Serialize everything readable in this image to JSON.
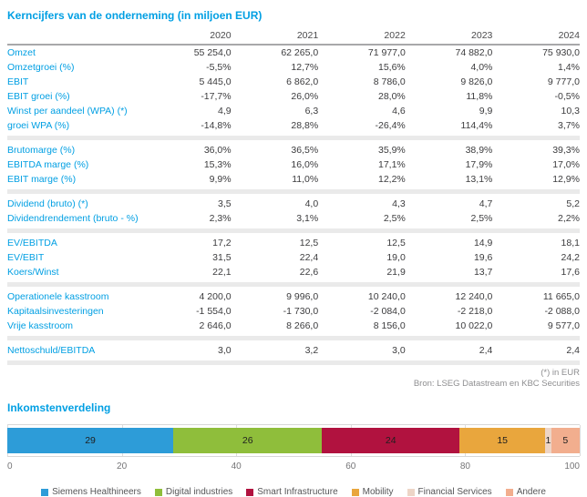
{
  "table": {
    "title": "Kerncijfers van de onderneming (in miljoen EUR)",
    "columns": [
      "2020",
      "2021",
      "2022",
      "2023",
      "2024"
    ],
    "groups": [
      {
        "rows": [
          {
            "label": "Omzet",
            "values": [
              "55 254,0",
              "62 265,0",
              "71 977,0",
              "74 882,0",
              "75 930,0"
            ]
          },
          {
            "label": "Omzetgroei (%)",
            "values": [
              "-5,5%",
              "12,7%",
              "15,6%",
              "4,0%",
              "1,4%"
            ]
          },
          {
            "label": "EBIT",
            "values": [
              "5 445,0",
              "6 862,0",
              "8 786,0",
              "9 826,0",
              "9 777,0"
            ]
          },
          {
            "label": "EBIT groei (%)",
            "values": [
              "-17,7%",
              "26,0%",
              "28,0%",
              "11,8%",
              "-0,5%"
            ]
          },
          {
            "label": "Winst per aandeel (WPA) (*)",
            "values": [
              "4,9",
              "6,3",
              "4,6",
              "9,9",
              "10,3"
            ]
          },
          {
            "label": "groei WPA (%)",
            "values": [
              "-14,8%",
              "28,8%",
              "-26,4%",
              "114,4%",
              "3,7%"
            ]
          }
        ]
      },
      {
        "rows": [
          {
            "label": "Brutomarge (%)",
            "values": [
              "36,0%",
              "36,5%",
              "35,9%",
              "38,9%",
              "39,3%"
            ]
          },
          {
            "label": "EBITDA marge (%)",
            "values": [
              "15,3%",
              "16,0%",
              "17,1%",
              "17,9%",
              "17,0%"
            ]
          },
          {
            "label": "EBIT marge (%)",
            "values": [
              "9,9%",
              "11,0%",
              "12,2%",
              "13,1%",
              "12,9%"
            ]
          }
        ]
      },
      {
        "rows": [
          {
            "label": "Dividend (bruto) (*)",
            "values": [
              "3,5",
              "4,0",
              "4,3",
              "4,7",
              "5,2"
            ]
          },
          {
            "label": "Dividendrendement (bruto - %)",
            "values": [
              "2,3%",
              "3,1%",
              "2,5%",
              "2,5%",
              "2,2%"
            ]
          }
        ]
      },
      {
        "rows": [
          {
            "label": "EV/EBITDA",
            "values": [
              "17,2",
              "12,5",
              "12,5",
              "14,9",
              "18,1"
            ]
          },
          {
            "label": "EV/EBIT",
            "values": [
              "31,5",
              "22,4",
              "19,0",
              "19,6",
              "24,2"
            ]
          },
          {
            "label": "Koers/Winst",
            "values": [
              "22,1",
              "22,6",
              "21,9",
              "13,7",
              "17,6"
            ]
          }
        ]
      },
      {
        "rows": [
          {
            "label": "Operationele kasstroom",
            "values": [
              "4 200,0",
              "9 996,0",
              "10 240,0",
              "12 240,0",
              "11 665,0"
            ]
          },
          {
            "label": "Kapitaalsinvesteringen",
            "values": [
              "-1 554,0",
              "-1 730,0",
              "-2 084,0",
              "-2 218,0",
              "-2 088,0"
            ]
          },
          {
            "label": "Vrije kasstroom",
            "values": [
              "2 646,0",
              "8 266,0",
              "8 156,0",
              "10 022,0",
              "9 577,0"
            ]
          }
        ]
      },
      {
        "rows": [
          {
            "label": "Nettoschuld/EBITDA",
            "values": [
              "3,0",
              "3,2",
              "3,0",
              "2,4",
              "2,4"
            ]
          }
        ]
      }
    ],
    "footnote": "(*) in EUR",
    "source": "Bron: LSEG Datastream en KBC Securities"
  },
  "chart_data": {
    "type": "bar",
    "variant": "horizontal-stacked",
    "title": "Inkomstenverdeling",
    "segments": [
      {
        "name": "Siemens Healthineers",
        "value": 29,
        "color": "#2d9cd8"
      },
      {
        "name": "Digital industries",
        "value": 26,
        "color": "#8fbe3b"
      },
      {
        "name": "Smart Infrastructure",
        "value": 24,
        "color": "#b1123f"
      },
      {
        "name": "Mobility",
        "value": 15,
        "color": "#e9a63d"
      },
      {
        "name": "Financial Services",
        "value": 1,
        "color": "#edd5c7"
      },
      {
        "name": "Andere",
        "value": 5,
        "color": "#f2ae8e"
      }
    ],
    "x_ticks": [
      0,
      20,
      40,
      60,
      80,
      100
    ],
    "xlim": [
      0,
      100
    ],
    "grid": true,
    "legend_position": "bottom"
  },
  "colors": {
    "accent": "#009fe3",
    "value_text": "#3c3c3e",
    "muted_text": "#8e8e90",
    "separator_band": "#eaeaea",
    "header_rule": "#a8a8aa",
    "grid_line": "#dcdcdc"
  }
}
